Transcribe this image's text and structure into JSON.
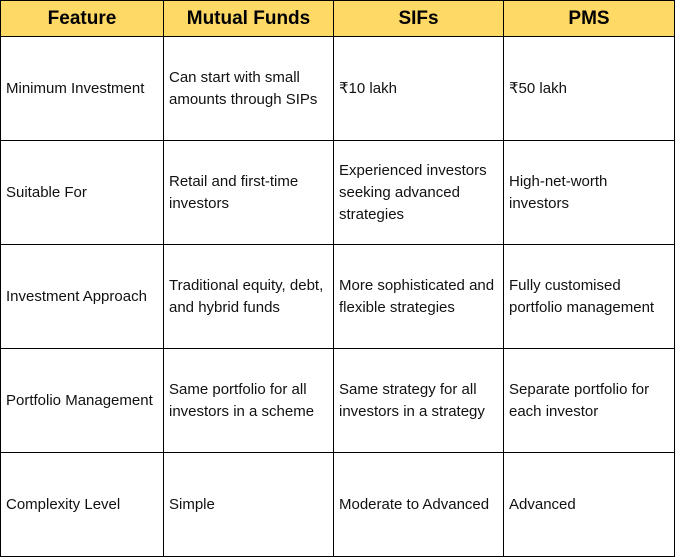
{
  "table": {
    "header": [
      "Feature",
      "Mutual Funds",
      "SIFs",
      "PMS"
    ],
    "rows": [
      [
        "Minimum Investment",
        "Can start with small amounts through SIPs",
        "₹10 lakh",
        "₹50 lakh"
      ],
      [
        "Suitable For",
        "Retail and first-time investors",
        "Experienced investors seeking advanced strategies",
        "High-net-worth investors"
      ],
      [
        "Investment Approach",
        "Traditional equity, debt, and hybrid funds",
        "More sophisticated and flexible strategies",
        "Fully customised portfolio management"
      ],
      [
        "Portfolio Management",
        "Same portfolio for all investors in a scheme",
        "Same strategy for all investors in a strategy",
        "Separate portfolio for each investor"
      ],
      [
        "Complexity Level",
        "Simple",
        "Moderate to Advanced",
        "Advanced"
      ]
    ]
  }
}
